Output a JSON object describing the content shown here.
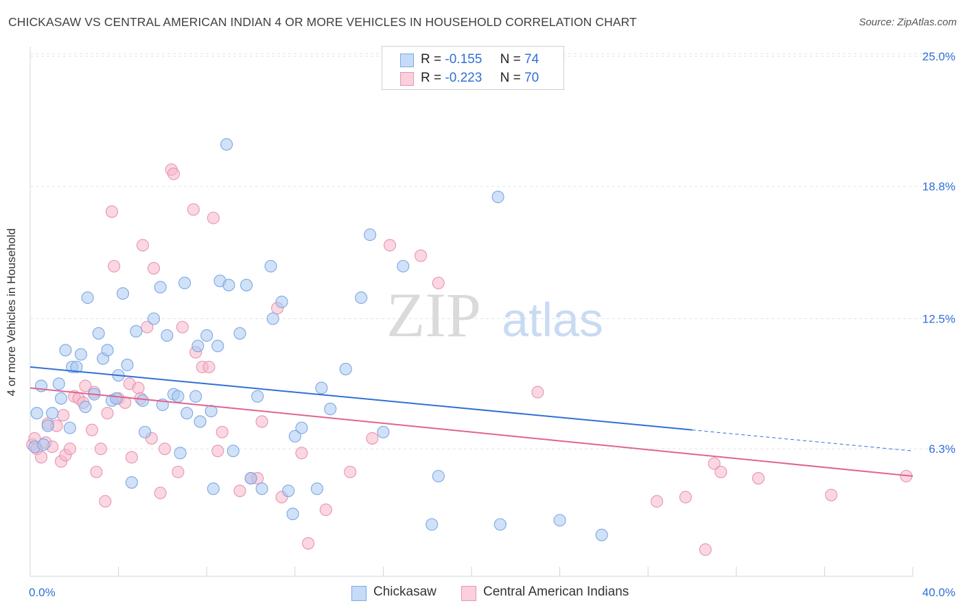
{
  "title": "CHICKASAW VS CENTRAL AMERICAN INDIAN 4 OR MORE VEHICLES IN HOUSEHOLD CORRELATION CHART",
  "source": "Source: ZipAtlas.com",
  "watermark": {
    "zip": "ZIP",
    "atlas": "atlas"
  },
  "legend": {
    "r_label": "R =",
    "n_label": "N =",
    "rows": [
      {
        "r": "-0.155",
        "n": "74",
        "color": "#a9c8f2"
      },
      {
        "r": "-0.223",
        "n": "70",
        "color": "#f5b6c9"
      }
    ]
  },
  "bottom_legend": [
    "Chickasaw",
    "Central American Indians"
  ],
  "colors": {
    "blue_fill": "#a9c8f2",
    "blue_stroke": "#7aa7e4",
    "blue_line": "#2e6fd6",
    "pink_fill": "#f5b6c9",
    "pink_stroke": "#e993b0",
    "pink_line": "#e0628e",
    "axis_text": "#2e6fd6",
    "grid": "#dde3ea"
  },
  "chart_data": {
    "type": "scatter",
    "title": "CHICKASAW VS CENTRAL AMERICAN INDIAN 4 OR MORE VEHICLES IN HOUSEHOLD CORRELATION CHART",
    "xlabel": "",
    "ylabel": "4 or more Vehicles in Household",
    "xlim": [
      0,
      40
    ],
    "ylim": [
      0,
      26
    ],
    "x_tick_labels": [
      "0.0%",
      "40.0%"
    ],
    "y_ticks": [
      6.3,
      12.5,
      18.8,
      25.0
    ],
    "y_tick_labels": [
      "6.3%",
      "12.5%",
      "18.8%",
      "25.0%"
    ],
    "grid": true,
    "legend_position": "top-center",
    "series": [
      {
        "name": "Chickasaw",
        "color": "#a9c8f2",
        "trend": {
          "x0": 0,
          "y0": 10.2,
          "x1": 30,
          "y1": 7.2,
          "dashed_to": 40,
          "dashed_y": 6.2
        },
        "points": [
          [
            0.2,
            6.4
          ],
          [
            0.3,
            8.0
          ],
          [
            0.5,
            9.3
          ],
          [
            0.6,
            6.5
          ],
          [
            0.8,
            7.4
          ],
          [
            1.0,
            8.0
          ],
          [
            1.3,
            9.4
          ],
          [
            1.4,
            8.7
          ],
          [
            1.6,
            11.0
          ],
          [
            1.8,
            7.3
          ],
          [
            1.9,
            10.2
          ],
          [
            2.1,
            10.2
          ],
          [
            2.3,
            10.8
          ],
          [
            2.5,
            8.3
          ],
          [
            2.6,
            13.5
          ],
          [
            2.9,
            8.9
          ],
          [
            3.1,
            11.8
          ],
          [
            3.3,
            10.6
          ],
          [
            3.5,
            11.0
          ],
          [
            3.7,
            8.6
          ],
          [
            3.9,
            8.7
          ],
          [
            4.0,
            9.8
          ],
          [
            4.2,
            13.7
          ],
          [
            4.4,
            10.3
          ],
          [
            4.6,
            4.7
          ],
          [
            4.8,
            11.9
          ],
          [
            5.1,
            8.6
          ],
          [
            5.2,
            7.1
          ],
          [
            5.6,
            12.5
          ],
          [
            5.9,
            14.0
          ],
          [
            6.0,
            8.4
          ],
          [
            6.2,
            11.7
          ],
          [
            6.5,
            8.9
          ],
          [
            6.7,
            8.8
          ],
          [
            6.8,
            6.1
          ],
          [
            7.0,
            14.2
          ],
          [
            7.1,
            8.0
          ],
          [
            7.5,
            8.8
          ],
          [
            7.6,
            11.2
          ],
          [
            7.7,
            7.6
          ],
          [
            8.0,
            11.7
          ],
          [
            8.2,
            8.1
          ],
          [
            8.3,
            4.4
          ],
          [
            8.5,
            11.2
          ],
          [
            8.6,
            14.3
          ],
          [
            8.9,
            20.8
          ],
          [
            9.0,
            14.1
          ],
          [
            9.2,
            6.2
          ],
          [
            9.5,
            11.8
          ],
          [
            9.8,
            14.1
          ],
          [
            10.0,
            4.9
          ],
          [
            10.3,
            8.8
          ],
          [
            10.5,
            4.4
          ],
          [
            10.9,
            15.0
          ],
          [
            11.0,
            12.5
          ],
          [
            11.4,
            13.3
          ],
          [
            11.7,
            4.3
          ],
          [
            11.9,
            3.2
          ],
          [
            12.0,
            6.9
          ],
          [
            12.3,
            7.3
          ],
          [
            13.0,
            4.4
          ],
          [
            13.2,
            9.2
          ],
          [
            13.6,
            8.2
          ],
          [
            14.3,
            10.1
          ],
          [
            15.0,
            13.5
          ],
          [
            15.4,
            16.5
          ],
          [
            16.0,
            7.1
          ],
          [
            16.9,
            15.0
          ],
          [
            18.2,
            2.7
          ],
          [
            18.5,
            5.0
          ],
          [
            21.2,
            18.3
          ],
          [
            21.3,
            2.7
          ],
          [
            24.0,
            2.9
          ],
          [
            25.9,
            2.2
          ]
        ]
      },
      {
        "name": "Central American Indians",
        "color": "#f5b6c9",
        "trend": {
          "x0": 0,
          "y0": 9.2,
          "x1": 40,
          "y1": 5.0
        },
        "points": [
          [
            0.1,
            6.5
          ],
          [
            0.2,
            6.8
          ],
          [
            0.3,
            6.3
          ],
          [
            0.5,
            5.9
          ],
          [
            0.7,
            6.6
          ],
          [
            0.8,
            7.5
          ],
          [
            1.0,
            6.4
          ],
          [
            1.2,
            7.4
          ],
          [
            1.4,
            5.7
          ],
          [
            1.5,
            7.9
          ],
          [
            1.6,
            6.0
          ],
          [
            1.8,
            6.3
          ],
          [
            2.0,
            8.8
          ],
          [
            2.2,
            8.7
          ],
          [
            2.4,
            8.5
          ],
          [
            2.5,
            9.3
          ],
          [
            2.8,
            7.2
          ],
          [
            2.9,
            9.0
          ],
          [
            3.0,
            5.2
          ],
          [
            3.2,
            6.3
          ],
          [
            3.4,
            3.8
          ],
          [
            3.5,
            8.0
          ],
          [
            3.7,
            17.6
          ],
          [
            3.8,
            15.0
          ],
          [
            4.0,
            8.7
          ],
          [
            4.3,
            8.5
          ],
          [
            4.5,
            9.4
          ],
          [
            4.6,
            5.9
          ],
          [
            4.9,
            9.2
          ],
          [
            5.0,
            8.7
          ],
          [
            5.1,
            16.0
          ],
          [
            5.3,
            12.1
          ],
          [
            5.5,
            6.8
          ],
          [
            5.6,
            14.9
          ],
          [
            5.9,
            4.2
          ],
          [
            6.1,
            6.3
          ],
          [
            6.4,
            19.6
          ],
          [
            6.5,
            19.4
          ],
          [
            6.7,
            5.2
          ],
          [
            6.9,
            12.1
          ],
          [
            7.4,
            17.7
          ],
          [
            7.5,
            10.9
          ],
          [
            7.8,
            10.2
          ],
          [
            8.1,
            10.2
          ],
          [
            8.3,
            17.3
          ],
          [
            8.5,
            6.2
          ],
          [
            8.7,
            7.1
          ],
          [
            9.5,
            4.3
          ],
          [
            10.0,
            4.9
          ],
          [
            10.3,
            4.9
          ],
          [
            10.5,
            7.6
          ],
          [
            11.2,
            13.0
          ],
          [
            11.4,
            4.0
          ],
          [
            12.3,
            6.1
          ],
          [
            12.6,
            1.8
          ],
          [
            13.4,
            3.4
          ],
          [
            14.5,
            5.2
          ],
          [
            15.5,
            6.8
          ],
          [
            16.3,
            16.0
          ],
          [
            17.7,
            15.5
          ],
          [
            18.5,
            14.2
          ],
          [
            23.0,
            9.0
          ],
          [
            28.4,
            3.8
          ],
          [
            29.7,
            4.0
          ],
          [
            30.6,
            1.5
          ],
          [
            31.0,
            5.6
          ],
          [
            31.3,
            5.2
          ],
          [
            33.0,
            4.9
          ],
          [
            36.3,
            4.1
          ],
          [
            39.7,
            5.0
          ]
        ]
      }
    ]
  }
}
